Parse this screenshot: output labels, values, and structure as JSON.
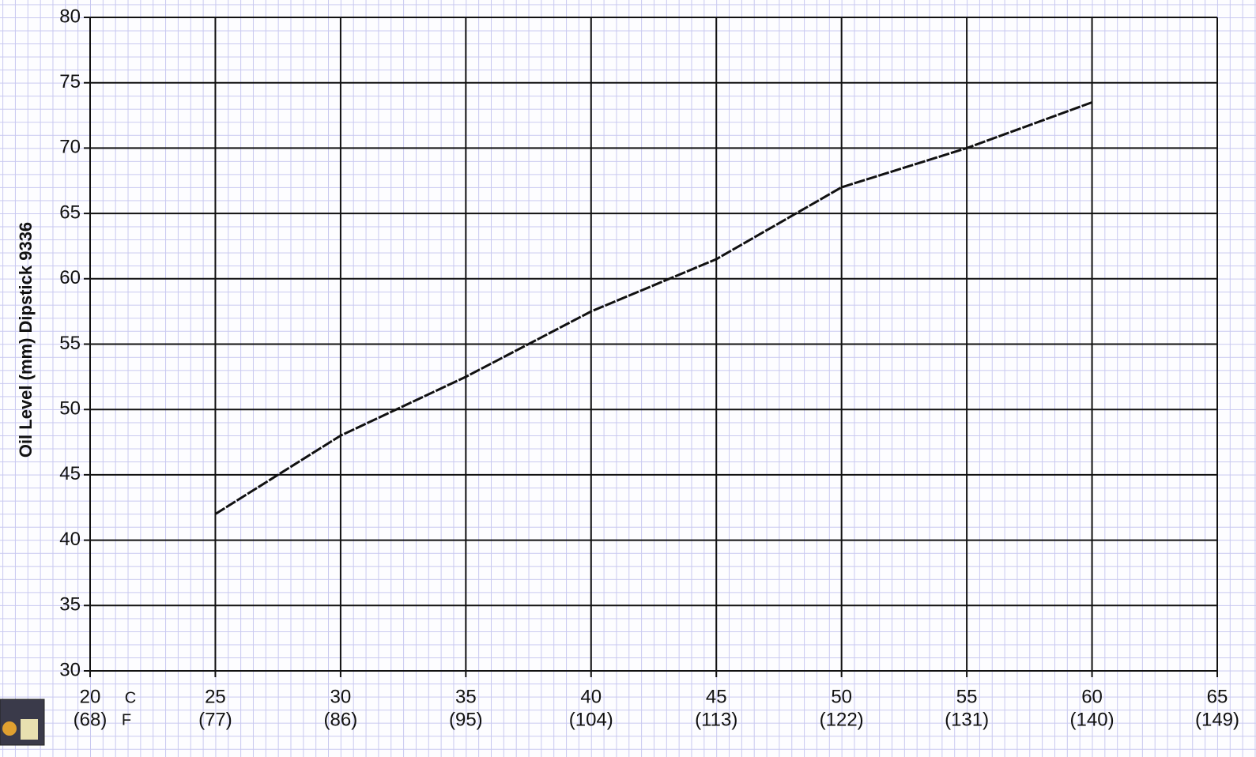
{
  "chart_data": {
    "type": "line",
    "y_label": "Oil Level (mm) Dipstick 9336",
    "x": [
      25,
      30,
      35,
      40,
      45,
      50,
      55,
      60
    ],
    "values": [
      42,
      48,
      52.5,
      57.5,
      61.5,
      67,
      70,
      73.5
    ],
    "color": "#111111",
    "xlim": [
      20,
      65
    ],
    "xticks": [
      20,
      25,
      30,
      35,
      40,
      45,
      50,
      55,
      60,
      65
    ],
    "xtick_sublabels": [
      "(68)",
      "(77)",
      "(86)",
      "(95)",
      "(104)",
      "(113)",
      "(122)",
      "(131)",
      "(140)",
      "(149)"
    ],
    "x_unit": "C",
    "x_subunit": "F",
    "ylim": [
      30,
      80
    ],
    "yticks": [
      30,
      35,
      40,
      45,
      50,
      55,
      60,
      65,
      70,
      75,
      80
    ],
    "grid": true
  }
}
